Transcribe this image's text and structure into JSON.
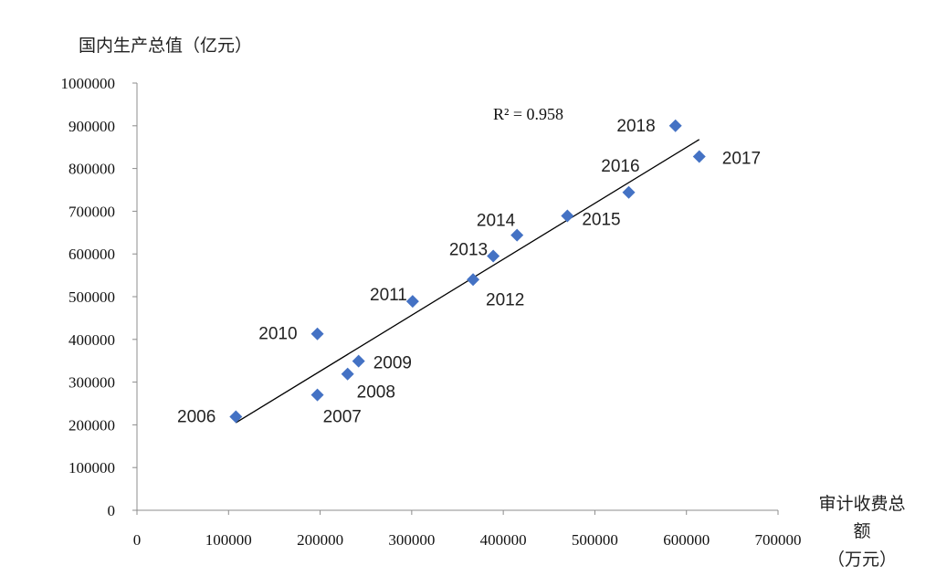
{
  "chart_data": {
    "type": "scatter",
    "title": "",
    "ylabel": "国内生产总值（亿元）",
    "xlabel_lines": [
      "审计收费总",
      "额",
      "（万元）"
    ],
    "xlim": [
      0,
      700000
    ],
    "ylim": [
      0,
      1000000
    ],
    "x_ticks": [
      "0",
      "100000",
      "200000",
      "300000",
      "400000",
      "500000",
      "600000",
      "700000"
    ],
    "y_ticks": [
      "0",
      "100000",
      "200000",
      "300000",
      "400000",
      "500000",
      "600000",
      "700000",
      "800000",
      "900000",
      "1000000"
    ],
    "points": [
      {
        "label": "2006",
        "x": 108000,
        "y": 219000
      },
      {
        "label": "2007",
        "x": 197000,
        "y": 270000
      },
      {
        "label": "2008",
        "x": 230000,
        "y": 319000
      },
      {
        "label": "2009",
        "x": 242000,
        "y": 349000
      },
      {
        "label": "2010",
        "x": 197000,
        "y": 413000
      },
      {
        "label": "2011",
        "x": 301000,
        "y": 489000
      },
      {
        "label": "2012",
        "x": 367000,
        "y": 540000
      },
      {
        "label": "2013",
        "x": 389000,
        "y": 595000
      },
      {
        "label": "2014",
        "x": 415000,
        "y": 644000
      },
      {
        "label": "2015",
        "x": 470000,
        "y": 689000
      },
      {
        "label": "2016",
        "x": 537000,
        "y": 744000
      },
      {
        "label": "2017",
        "x": 614000,
        "y": 828000
      },
      {
        "label": "2018",
        "x": 588000,
        "y": 900000
      }
    ],
    "trendline": {
      "type": "linear",
      "x": [
        108000,
        614000
      ],
      "y": [
        205000,
        868000
      ]
    },
    "r_squared_label": "R² = 0.958",
    "marker_color": "#4472C4",
    "grid": false,
    "legend": "none"
  }
}
